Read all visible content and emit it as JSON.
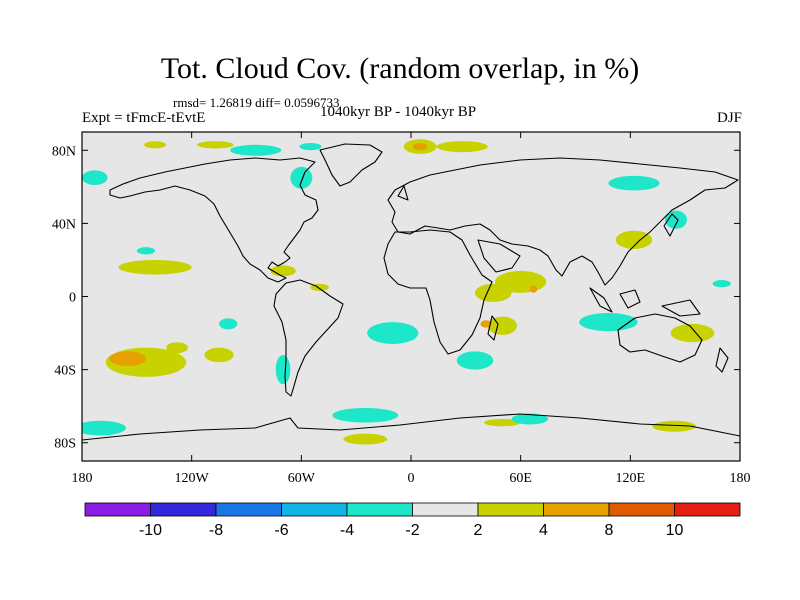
{
  "figure": {
    "title": "Tot. Cloud Cov. (random overlap, in %)",
    "stats": "rmsd= 1.26819  diff= 0.0596733",
    "experiment": "Expt = tFmcE-tEvtE",
    "period": "1040kyr BP - 1040kyr BP",
    "season": "DJF"
  },
  "map": {
    "lat_labels": [
      "80N",
      "40N",
      "0",
      "40S",
      "80S"
    ],
    "lon_labels": [
      "180",
      "120W",
      "60W",
      "0",
      "60E",
      "120E",
      "180"
    ],
    "ocean_color": "#e6e6e6",
    "coast_color": "#000000"
  },
  "colorbar": {
    "colors": [
      "#8a1ee6",
      "#3328dc",
      "#1a78e6",
      "#11b4e6",
      "#1ee6c8",
      "#e6e6e6",
      "#c8d200",
      "#e6a000",
      "#e05a00",
      "#e61e14"
    ],
    "labels": [
      "-10",
      "-8",
      "-6",
      "-4",
      "-2",
      "2",
      "4",
      "8",
      "10"
    ]
  },
  "chart_data": {
    "type": "heatmap",
    "title": "Tot. Cloud Cov. (random overlap, in %)",
    "variable": "total cloud cover difference (%)",
    "levels": [
      -10,
      -8,
      -6,
      -4,
      -2,
      2,
      4,
      8,
      10
    ],
    "xlim": [
      -180,
      180
    ],
    "ylim": [
      -90,
      90
    ],
    "rmsd": 1.26819,
    "diff": 0.0596733,
    "regions": [
      {
        "level": 3,
        "lon": -145,
        "lat": -36,
        "rx": 22,
        "ry": 8
      },
      {
        "level": 4,
        "lon": -155,
        "lat": -34,
        "rx": 10,
        "ry": 4
      },
      {
        "level": 3,
        "lon": -140,
        "lat": 16,
        "rx": 20,
        "ry": 4
      },
      {
        "level": 3,
        "lon": -128,
        "lat": -28,
        "rx": 6,
        "ry": 3
      },
      {
        "level": 3,
        "lon": -105,
        "lat": -32,
        "rx": 8,
        "ry": 4
      },
      {
        "level": 3,
        "lon": 45,
        "lat": 2,
        "rx": 10,
        "ry": 5
      },
      {
        "level": 3,
        "lon": 60,
        "lat": 8,
        "rx": 14,
        "ry": 6
      },
      {
        "level": 3,
        "lon": 50,
        "lat": -16,
        "rx": 8,
        "ry": 5
      },
      {
        "level": 4,
        "lon": 41,
        "lat": -15,
        "rx": 3,
        "ry": 2
      },
      {
        "level": 4,
        "lon": 67,
        "lat": 4,
        "rx": 2,
        "ry": 2
      },
      {
        "level": 3,
        "lon": 122,
        "lat": 31,
        "rx": 10,
        "ry": 5
      },
      {
        "level": 3,
        "lon": 154,
        "lat": -20,
        "rx": 12,
        "ry": 5
      },
      {
        "level": 3,
        "lon": 5,
        "lat": 82,
        "rx": 9,
        "ry": 4
      },
      {
        "level": 3,
        "lon": 28,
        "lat": 82,
        "rx": 14,
        "ry": 3
      },
      {
        "level": 4,
        "lon": 5,
        "lat": 82,
        "rx": 4,
        "ry": 2
      },
      {
        "level": 3,
        "lon": -107,
        "lat": 83,
        "rx": 10,
        "ry": 2
      },
      {
        "level": 3,
        "lon": -140,
        "lat": 83,
        "rx": 6,
        "ry": 2
      },
      {
        "level": 3,
        "lon": -50,
        "lat": 5,
        "rx": 5,
        "ry": 2
      },
      {
        "level": 3,
        "lon": -70,
        "lat": 14,
        "rx": 7,
        "ry": 3
      },
      {
        "level": 3,
        "lon": 144,
        "lat": -71,
        "rx": 12,
        "ry": 3
      },
      {
        "level": 3,
        "lon": 50,
        "lat": -69,
        "rx": 10,
        "ry": 2
      },
      {
        "level": 3,
        "lon": -25,
        "lat": -78,
        "rx": 12,
        "ry": 3
      },
      {
        "level": -3,
        "lon": -85,
        "lat": 80,
        "rx": 14,
        "ry": 3
      },
      {
        "level": -3,
        "lon": -55,
        "lat": 82,
        "rx": 6,
        "ry": 2
      },
      {
        "level": -3,
        "lon": -173,
        "lat": 65,
        "rx": 7,
        "ry": 4
      },
      {
        "level": -3,
        "lon": -60,
        "lat": 65,
        "rx": 6,
        "ry": 6
      },
      {
        "level": -3,
        "lon": -10,
        "lat": -20,
        "rx": 14,
        "ry": 6
      },
      {
        "level": -3,
        "lon": 35,
        "lat": -35,
        "rx": 10,
        "ry": 5
      },
      {
        "level": -3,
        "lon": 108,
        "lat": -14,
        "rx": 16,
        "ry": 5
      },
      {
        "level": -3,
        "lon": -170,
        "lat": -72,
        "rx": 14,
        "ry": 4
      },
      {
        "level": -3,
        "lon": -25,
        "lat": -65,
        "rx": 18,
        "ry": 4
      },
      {
        "level": -3,
        "lon": 65,
        "lat": -67,
        "rx": 10,
        "ry": 3
      },
      {
        "level": -3,
        "lon": 122,
        "lat": 62,
        "rx": 14,
        "ry": 4
      },
      {
        "level": -3,
        "lon": 145,
        "lat": 42,
        "rx": 6,
        "ry": 5
      },
      {
        "level": -3,
        "lon": -100,
        "lat": -15,
        "rx": 5,
        "ry": 3
      },
      {
        "level": -3,
        "lon": -145,
        "lat": 25,
        "rx": 5,
        "ry": 2
      },
      {
        "level": -3,
        "lon": -70,
        "lat": -40,
        "rx": 4,
        "ry": 8
      },
      {
        "level": -3,
        "lon": 170,
        "lat": 7,
        "rx": 5,
        "ry": 2
      }
    ]
  }
}
